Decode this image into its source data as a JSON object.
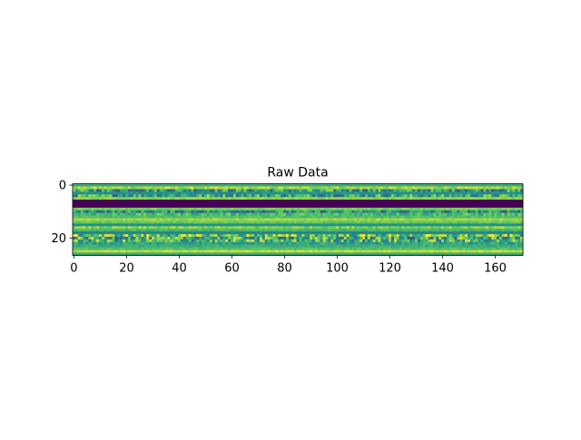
{
  "chart_data": {
    "type": "heatmap",
    "title": "Raw Data",
    "xlabel": "",
    "ylabel": "",
    "rows": 27,
    "cols": 171,
    "colormap": "viridis",
    "x_ticks": [
      0,
      20,
      40,
      60,
      80,
      100,
      120,
      140,
      160
    ],
    "y_ticks": [
      0,
      20
    ],
    "xlim": [
      -0.5,
      170.5
    ],
    "ylim": [
      26.5,
      -0.5
    ],
    "row_levels": [
      0.62,
      0.86,
      0.55,
      0.5,
      0.6,
      0.82,
      0.0,
      0.0,
      0.0,
      0.78,
      0.5,
      0.68,
      0.7,
      0.85,
      0.75,
      0.5,
      0.8,
      0.66,
      0.45,
      0.72,
      0.6,
      0.65,
      0.58,
      0.62,
      0.7,
      0.9,
      0.6
    ],
    "row_variability": [
      0.0,
      0.1,
      0.3,
      0.05,
      0.3,
      0.05,
      0.0,
      0.0,
      0.0,
      0.05,
      0.25,
      0.15,
      0.05,
      0.05,
      0.05,
      0.0,
      0.1,
      0.05,
      0.0,
      0.3,
      0.35,
      0.3,
      0.1,
      0.05,
      0.05,
      0.05,
      0.0
    ]
  }
}
